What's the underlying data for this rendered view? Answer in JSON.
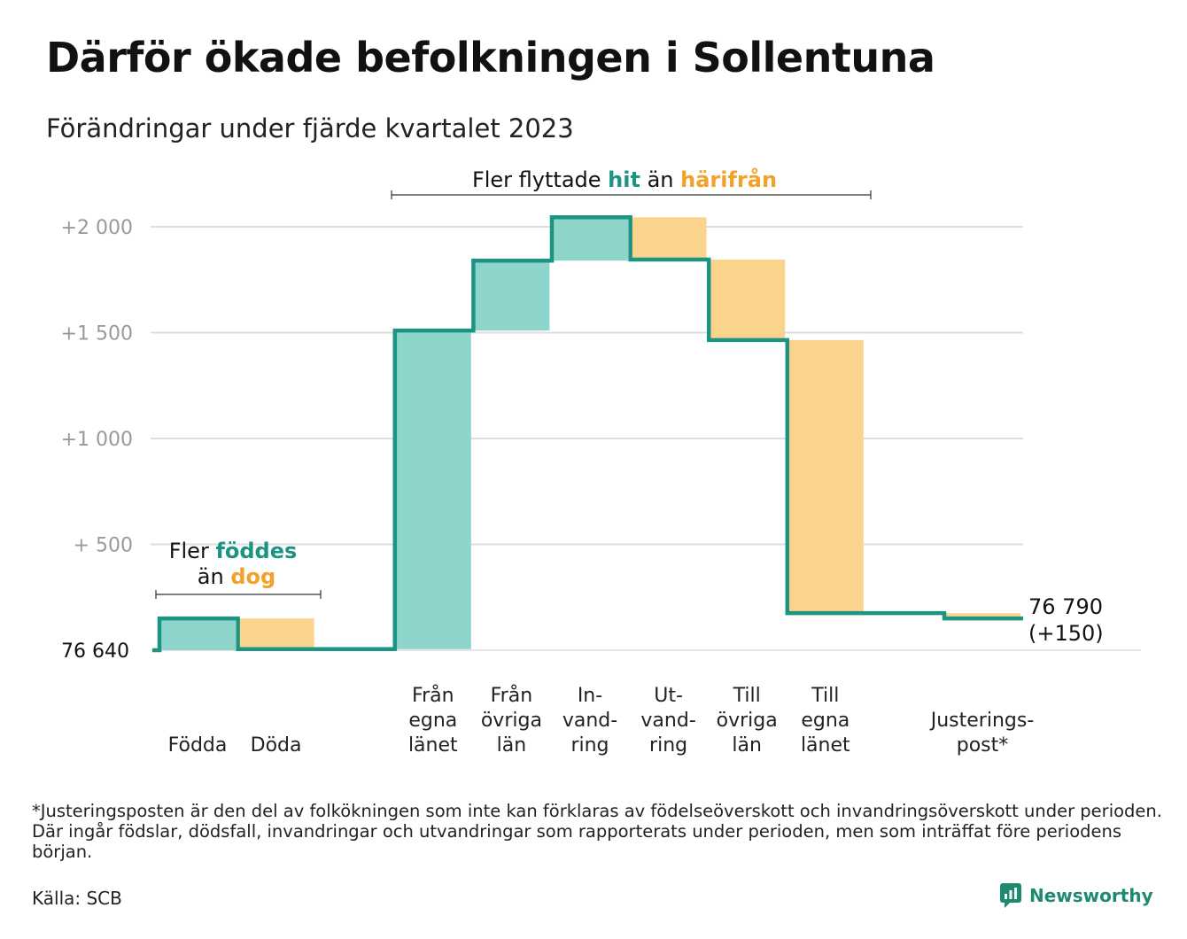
{
  "title": "Därför ökade befolkningen i Sollentuna",
  "subtitle": "Förändringar under fjärde kvartalet 2023",
  "colors": {
    "increase": "#8dd5cb",
    "decrease": "#fad48c",
    "line": "#1d9384",
    "teal_text": "#1d9384",
    "orange_text": "#f2a12b",
    "grid": "#dddddd"
  },
  "chart_data": {
    "type": "bar",
    "variant": "waterfall",
    "base_label": "76  640",
    "end_label": [
      "76 790",
      "(+150)"
    ],
    "ylim": [
      0,
      2000
    ],
    "yticks": [
      {
        "value": 500,
        "label": "+  500"
      },
      {
        "value": 1000,
        "label": "+1  000"
      },
      {
        "value": 1500,
        "label": "+1  500"
      },
      {
        "value": 2000,
        "label": "+2  000"
      }
    ],
    "grid": true,
    "steps": [
      {
        "name": "Födda",
        "label": [
          "Födda"
        ],
        "from": 0,
        "to": 150,
        "kind": "increase"
      },
      {
        "name": "Döda",
        "label": [
          "Döda"
        ],
        "from": 150,
        "to": 5,
        "kind": "decrease"
      },
      {
        "name": "gap",
        "label": [],
        "from": 5,
        "to": 5,
        "kind": "none"
      },
      {
        "name": "Från egna länet",
        "label": [
          "Från",
          "egna",
          "länet"
        ],
        "from": 5,
        "to": 1510,
        "kind": "increase"
      },
      {
        "name": "Från övriga län",
        "label": [
          "Från",
          "övriga",
          "län"
        ],
        "from": 1510,
        "to": 1840,
        "kind": "increase"
      },
      {
        "name": "Invandring",
        "label": [
          "In-",
          "vand-",
          "ring"
        ],
        "from": 1840,
        "to": 2045,
        "kind": "increase"
      },
      {
        "name": "Utvandring",
        "label": [
          "Ut-",
          "vand-",
          "ring"
        ],
        "from": 2045,
        "to": 1845,
        "kind": "decrease"
      },
      {
        "name": "Till övriga län",
        "label": [
          "Till",
          "övriga",
          "län"
        ],
        "from": 1845,
        "to": 1465,
        "kind": "decrease"
      },
      {
        "name": "Till egna länet",
        "label": [
          "Till",
          "egna",
          "länet"
        ],
        "from": 1465,
        "to": 175,
        "kind": "decrease"
      },
      {
        "name": "gap2",
        "label": [],
        "from": 175,
        "to": 175,
        "kind": "none"
      },
      {
        "name": "Justeringspost",
        "label": [
          "Justerings-",
          "post*"
        ],
        "from": 175,
        "to": 150,
        "kind": "decrease"
      }
    ],
    "annotations": [
      {
        "id": "births",
        "line1_parts": [
          "Fler ",
          "föddes"
        ],
        "line2_parts": [
          "än ",
          "dog"
        ]
      },
      {
        "id": "moves",
        "parts": [
          "Fler flyttade ",
          "hit",
          " än ",
          "härifrån"
        ]
      }
    ]
  },
  "footnote": "*Justeringsposten är den del av folkökningen som inte kan förklaras av födelseöverskott och invandringsöverskott under perioden. Där ingår födslar, dödsfall, invandringar och utvandringar som rapporterats under perioden, men som inträffat före periodens början.",
  "source": "Källa: SCB",
  "brand": "Newsworthy"
}
